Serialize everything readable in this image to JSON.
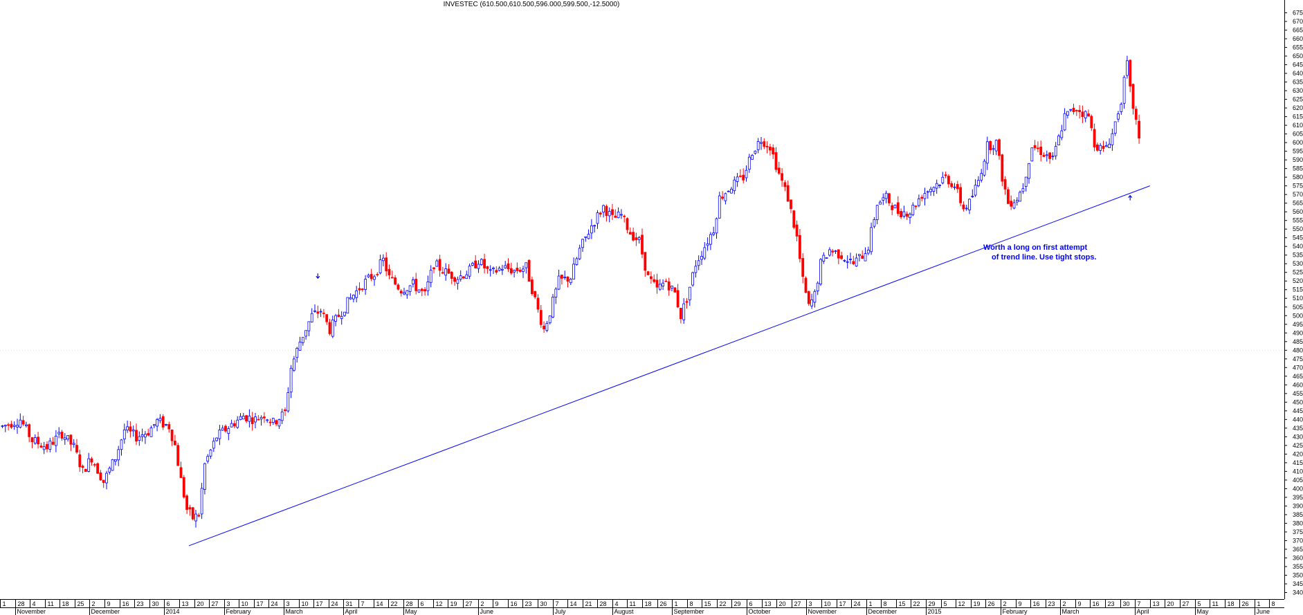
{
  "chart_data": {
    "type": "candlestick",
    "title": "INVESTEC (610.500,610.500,596.000,599.500,-12.5000)",
    "ylim": [
      340,
      675
    ],
    "y_ticks": [
      340,
      345,
      350,
      355,
      360,
      365,
      370,
      375,
      380,
      385,
      390,
      395,
      400,
      405,
      410,
      415,
      420,
      425,
      430,
      435,
      440,
      445,
      450,
      455,
      460,
      465,
      470,
      475,
      480,
      485,
      490,
      495,
      500,
      505,
      510,
      515,
      520,
      525,
      530,
      535,
      540,
      545,
      550,
      555,
      560,
      565,
      570,
      575,
      580,
      585,
      590,
      595,
      600,
      605,
      610,
      615,
      620,
      625,
      630,
      635,
      640,
      645,
      650,
      655,
      660,
      665,
      670,
      675
    ],
    "axis_position": "right",
    "up_color": "#0000ff",
    "down_color": "#ff0000",
    "line_color": "#0000ff",
    "date_ticks": [
      "1",
      "28",
      "4",
      "11",
      "18",
      "25",
      "2",
      "9",
      "16",
      "23",
      "30",
      "6",
      "13",
      "20",
      "27",
      "3",
      "10",
      "17",
      "24",
      "3",
      "10",
      "17",
      "24",
      "31",
      "7",
      "14",
      "22",
      "28",
      "6",
      "12",
      "19",
      "27",
      "2",
      "9",
      "16",
      "23",
      "30",
      "7",
      "14",
      "21",
      "28",
      "4",
      "11",
      "18",
      "26",
      "1",
      "8",
      "15",
      "22",
      "29",
      "6",
      "13",
      "20",
      "27",
      "3",
      "10",
      "17",
      "24",
      "1",
      "8",
      "15",
      "22",
      "29",
      "5",
      "12",
      "19",
      "26",
      "2",
      "9",
      "16",
      "23",
      "2",
      "9",
      "16",
      "23",
      "30",
      "7",
      "13",
      "20",
      "27",
      "5",
      "11",
      "18",
      "26",
      "1",
      "8"
    ],
    "months": [
      "November",
      "December",
      "2014",
      "February",
      "March",
      "April",
      "May",
      "June",
      "July",
      "August",
      "September",
      "October",
      "November",
      "December",
      "2015",
      "February",
      "March",
      "April",
      "May",
      "June"
    ],
    "guide": {
      "level": 480
    },
    "price_path": [
      {
        "x": 0,
        "y": 436
      },
      {
        "x": 6,
        "y": 440
      },
      {
        "x": 10,
        "y": 428
      },
      {
        "x": 15,
        "y": 424
      },
      {
        "x": 20,
        "y": 432
      },
      {
        "x": 24,
        "y": 424
      },
      {
        "x": 27,
        "y": 410
      },
      {
        "x": 30,
        "y": 418
      },
      {
        "x": 34,
        "y": 404
      },
      {
        "x": 38,
        "y": 418
      },
      {
        "x": 41,
        "y": 434
      },
      {
        "x": 45,
        "y": 430
      },
      {
        "x": 49,
        "y": 433
      },
      {
        "x": 52,
        "y": 439
      },
      {
        "x": 56,
        "y": 436
      },
      {
        "x": 58,
        "y": 425
      },
      {
        "x": 60,
        "y": 405
      },
      {
        "x": 62,
        "y": 388
      },
      {
        "x": 64,
        "y": 383
      },
      {
        "x": 66,
        "y": 385
      },
      {
        "x": 68,
        "y": 414
      },
      {
        "x": 72,
        "y": 430
      },
      {
        "x": 77,
        "y": 437
      },
      {
        "x": 81,
        "y": 442
      },
      {
        "x": 85,
        "y": 440
      },
      {
        "x": 88,
        "y": 443
      },
      {
        "x": 91,
        "y": 438
      },
      {
        "x": 95,
        "y": 444
      },
      {
        "x": 97,
        "y": 470
      },
      {
        "x": 100,
        "y": 485
      },
      {
        "x": 104,
        "y": 500
      },
      {
        "x": 107,
        "y": 503
      },
      {
        "x": 110,
        "y": 492
      },
      {
        "x": 113,
        "y": 500
      },
      {
        "x": 117,
        "y": 510
      },
      {
        "x": 121,
        "y": 518
      },
      {
        "x": 125,
        "y": 524
      },
      {
        "x": 128,
        "y": 532
      },
      {
        "x": 130,
        "y": 522
      },
      {
        "x": 134,
        "y": 515
      },
      {
        "x": 138,
        "y": 518
      },
      {
        "x": 142,
        "y": 512
      },
      {
        "x": 145,
        "y": 530
      },
      {
        "x": 149,
        "y": 525
      },
      {
        "x": 153,
        "y": 522
      },
      {
        "x": 157,
        "y": 526
      },
      {
        "x": 160,
        "y": 532
      },
      {
        "x": 164,
        "y": 524
      },
      {
        "x": 168,
        "y": 528
      },
      {
        "x": 172,
        "y": 526
      },
      {
        "x": 176,
        "y": 528
      },
      {
        "x": 180,
        "y": 503
      },
      {
        "x": 182,
        "y": 492
      },
      {
        "x": 184,
        "y": 502
      },
      {
        "x": 187,
        "y": 520
      },
      {
        "x": 191,
        "y": 522
      },
      {
        "x": 194,
        "y": 538
      },
      {
        "x": 198,
        "y": 552
      },
      {
        "x": 202,
        "y": 563
      },
      {
        "x": 205,
        "y": 556
      },
      {
        "x": 208,
        "y": 558
      },
      {
        "x": 211,
        "y": 548
      },
      {
        "x": 214,
        "y": 543
      },
      {
        "x": 217,
        "y": 522
      },
      {
        "x": 220,
        "y": 515
      },
      {
        "x": 223,
        "y": 520
      },
      {
        "x": 226,
        "y": 513
      },
      {
        "x": 228,
        "y": 500
      },
      {
        "x": 230,
        "y": 510
      },
      {
        "x": 233,
        "y": 530
      },
      {
        "x": 236,
        "y": 540
      },
      {
        "x": 239,
        "y": 550
      },
      {
        "x": 241,
        "y": 568
      },
      {
        "x": 245,
        "y": 575
      },
      {
        "x": 249,
        "y": 580
      },
      {
        "x": 252,
        "y": 595
      },
      {
        "x": 255,
        "y": 602
      },
      {
        "x": 258,
        "y": 598
      },
      {
        "x": 261,
        "y": 582
      },
      {
        "x": 264,
        "y": 568
      },
      {
        "x": 267,
        "y": 545
      },
      {
        "x": 269,
        "y": 520
      },
      {
        "x": 271,
        "y": 505
      },
      {
        "x": 273,
        "y": 512
      },
      {
        "x": 275,
        "y": 530
      },
      {
        "x": 278,
        "y": 538
      },
      {
        "x": 282,
        "y": 535
      },
      {
        "x": 286,
        "y": 530
      },
      {
        "x": 289,
        "y": 535
      },
      {
        "x": 291,
        "y": 540
      },
      {
        "x": 294,
        "y": 565
      },
      {
        "x": 297,
        "y": 568
      },
      {
        "x": 301,
        "y": 560
      },
      {
        "x": 305,
        "y": 560
      },
      {
        "x": 309,
        "y": 570
      },
      {
        "x": 313,
        "y": 575
      },
      {
        "x": 317,
        "y": 580
      },
      {
        "x": 320,
        "y": 575
      },
      {
        "x": 323,
        "y": 562
      },
      {
        "x": 325,
        "y": 565
      },
      {
        "x": 328,
        "y": 578
      },
      {
        "x": 331,
        "y": 598
      },
      {
        "x": 334,
        "y": 600
      },
      {
        "x": 336,
        "y": 580
      },
      {
        "x": 338,
        "y": 565
      },
      {
        "x": 341,
        "y": 568
      },
      {
        "x": 343,
        "y": 575
      },
      {
        "x": 346,
        "y": 598
      },
      {
        "x": 349,
        "y": 595
      },
      {
        "x": 353,
        "y": 590
      },
      {
        "x": 357,
        "y": 615
      },
      {
        "x": 361,
        "y": 620
      },
      {
        "x": 365,
        "y": 615
      },
      {
        "x": 367,
        "y": 600
      },
      {
        "x": 370,
        "y": 595
      },
      {
        "x": 373,
        "y": 605
      },
      {
        "x": 376,
        "y": 625
      },
      {
        "x": 378,
        "y": 645
      },
      {
        "x": 379,
        "y": 630
      },
      {
        "x": 381,
        "y": 612
      },
      {
        "x": 382,
        "y": 600
      }
    ],
    "arrows": [
      {
        "x": 106,
        "y": 522,
        "dir": "down"
      },
      {
        "x": 379,
        "y": 569,
        "dir": "up"
      }
    ],
    "trendline": {
      "from": {
        "x": 63,
        "y": 367
      },
      "to": {
        "x": 386,
        "y": 575
      }
    },
    "annotation": [
      "Worth a long on first attempt",
      "of trend line. Use tight stops."
    ],
    "annotation_pos": {
      "x": 330,
      "y": 538
    }
  }
}
